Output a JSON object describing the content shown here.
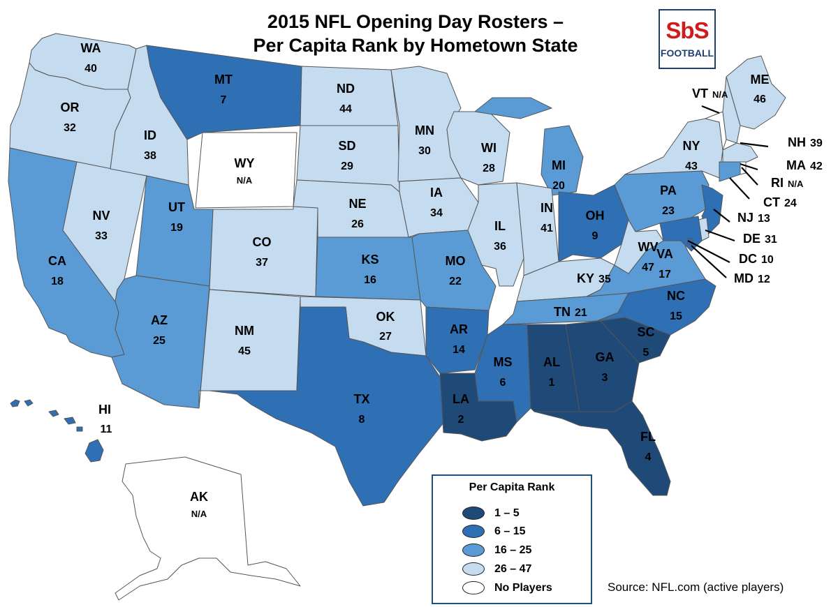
{
  "title_line1": "2015 NFL Opening Day Rosters –",
  "title_line2": "Per Capita Rank by Hometown State",
  "logo_text": "SbS",
  "logo_subtext": "FOOTBALL",
  "colors": {
    "rank_1_5": "#1f4a78",
    "rank_6_15": "#2f70b5",
    "rank_16_25": "#5b9bd5",
    "rank_26_47": "#c4dbf0",
    "no_players": "#ffffff"
  },
  "legend": {
    "title": "Per Capita Rank",
    "items": [
      {
        "label": "1 – 5",
        "tier": "rank_1_5"
      },
      {
        "label": "6 – 15",
        "tier": "rank_6_15"
      },
      {
        "label": "16 – 25",
        "tier": "rank_16_25"
      },
      {
        "label": "26 – 47",
        "tier": "rank_26_47"
      },
      {
        "label": "No Players",
        "tier": "no_players"
      }
    ]
  },
  "source": "Source: NFL.com (active players)",
  "states": [
    {
      "abbr": "WA",
      "rank": "40",
      "tier": "rank_26_47"
    },
    {
      "abbr": "OR",
      "rank": "32",
      "tier": "rank_26_47"
    },
    {
      "abbr": "CA",
      "rank": "18",
      "tier": "rank_16_25"
    },
    {
      "abbr": "NV",
      "rank": "33",
      "tier": "rank_26_47"
    },
    {
      "abbr": "ID",
      "rank": "38",
      "tier": "rank_26_47"
    },
    {
      "abbr": "MT",
      "rank": "7",
      "tier": "rank_6_15"
    },
    {
      "abbr": "WY",
      "rank": "N/A",
      "tier": "no_players"
    },
    {
      "abbr": "UT",
      "rank": "19",
      "tier": "rank_16_25"
    },
    {
      "abbr": "AZ",
      "rank": "25",
      "tier": "rank_16_25"
    },
    {
      "abbr": "CO",
      "rank": "37",
      "tier": "rank_26_47"
    },
    {
      "abbr": "NM",
      "rank": "45",
      "tier": "rank_26_47"
    },
    {
      "abbr": "ND",
      "rank": "44",
      "tier": "rank_26_47"
    },
    {
      "abbr": "SD",
      "rank": "29",
      "tier": "rank_26_47"
    },
    {
      "abbr": "NE",
      "rank": "26",
      "tier": "rank_26_47"
    },
    {
      "abbr": "KS",
      "rank": "16",
      "tier": "rank_16_25"
    },
    {
      "abbr": "OK",
      "rank": "27",
      "tier": "rank_26_47"
    },
    {
      "abbr": "TX",
      "rank": "8",
      "tier": "rank_6_15"
    },
    {
      "abbr": "MN",
      "rank": "30",
      "tier": "rank_26_47"
    },
    {
      "abbr": "IA",
      "rank": "34",
      "tier": "rank_26_47"
    },
    {
      "abbr": "MO",
      "rank": "22",
      "tier": "rank_16_25"
    },
    {
      "abbr": "AR",
      "rank": "14",
      "tier": "rank_6_15"
    },
    {
      "abbr": "LA",
      "rank": "2",
      "tier": "rank_1_5"
    },
    {
      "abbr": "WI",
      "rank": "28",
      "tier": "rank_26_47"
    },
    {
      "abbr": "IL",
      "rank": "36",
      "tier": "rank_26_47"
    },
    {
      "abbr": "MI",
      "rank": "20",
      "tier": "rank_16_25"
    },
    {
      "abbr": "IN",
      "rank": "41",
      "tier": "rank_26_47"
    },
    {
      "abbr": "OH",
      "rank": "9",
      "tier": "rank_6_15"
    },
    {
      "abbr": "KY",
      "rank": "35",
      "tier": "rank_26_47"
    },
    {
      "abbr": "TN",
      "rank": "21",
      "tier": "rank_16_25"
    },
    {
      "abbr": "MS",
      "rank": "6",
      "tier": "rank_6_15"
    },
    {
      "abbr": "AL",
      "rank": "1",
      "tier": "rank_1_5"
    },
    {
      "abbr": "GA",
      "rank": "3",
      "tier": "rank_1_5"
    },
    {
      "abbr": "FL",
      "rank": "4",
      "tier": "rank_1_5"
    },
    {
      "abbr": "SC",
      "rank": "5",
      "tier": "rank_1_5"
    },
    {
      "abbr": "NC",
      "rank": "15",
      "tier": "rank_6_15"
    },
    {
      "abbr": "VA",
      "rank": "17",
      "tier": "rank_16_25"
    },
    {
      "abbr": "WV",
      "rank": "47",
      "tier": "rank_26_47"
    },
    {
      "abbr": "PA",
      "rank": "23",
      "tier": "rank_16_25"
    },
    {
      "abbr": "NY",
      "rank": "43",
      "tier": "rank_26_47"
    },
    {
      "abbr": "ME",
      "rank": "46",
      "tier": "rank_26_47"
    },
    {
      "abbr": "VT",
      "rank": "N/A",
      "tier": "no_players"
    },
    {
      "abbr": "NH",
      "rank": "39",
      "tier": "rank_26_47"
    },
    {
      "abbr": "MA",
      "rank": "42",
      "tier": "rank_26_47"
    },
    {
      "abbr": "RI",
      "rank": "N/A",
      "tier": "no_players"
    },
    {
      "abbr": "CT",
      "rank": "24",
      "tier": "rank_16_25"
    },
    {
      "abbr": "NJ",
      "rank": "13",
      "tier": "rank_6_15"
    },
    {
      "abbr": "DE",
      "rank": "31",
      "tier": "rank_26_47"
    },
    {
      "abbr": "DC",
      "rank": "10",
      "tier": "rank_6_15"
    },
    {
      "abbr": "MD",
      "rank": "12",
      "tier": "rank_6_15"
    },
    {
      "abbr": "HI",
      "rank": "11",
      "tier": "rank_6_15"
    },
    {
      "abbr": "AK",
      "rank": "N/A",
      "tier": "no_players"
    }
  ]
}
